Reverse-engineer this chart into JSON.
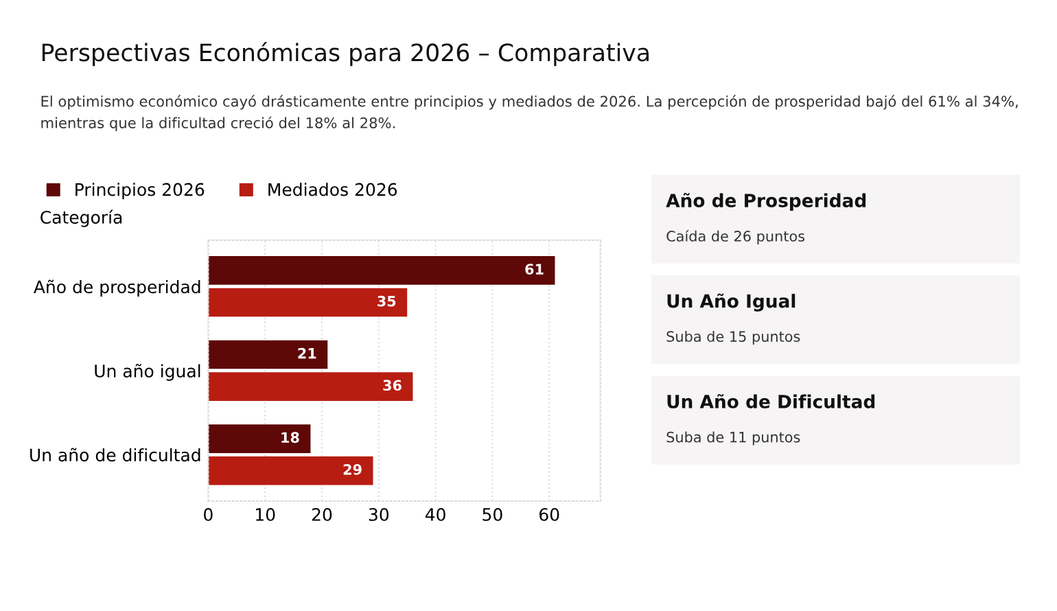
{
  "chart_data": [
    {
      "type": "bar",
      "orientation": "horizontal",
      "title": "Perspectivas Económicas para 2026 – Comparativa",
      "subtitle": "El optimismo económico cayó drásticamente entre principios y mediados de 2026. La percepción de prosperidad bajó del 61% al 34%, mientras que la dificultad creció del 18% al 28%.",
      "ylabel": "Categoría",
      "categories": [
        "Año de prosperidad",
        "Un año igual",
        "Un año de dificultad"
      ],
      "series": [
        {
          "name": "Principios 2026",
          "color": "#5e0808",
          "values": [
            61,
            21,
            18
          ]
        },
        {
          "name": "Mediados 2026",
          "color": "#b81d12",
          "values": [
            35,
            36,
            29
          ]
        }
      ],
      "xlim": [
        0,
        69
      ],
      "xticks": [
        0,
        10,
        20,
        30,
        40,
        50,
        60
      ],
      "grid": "x",
      "legend": "top left",
      "data_labels": true
    },
    {
      "type": "other",
      "annotations": [
        "Año de Prosperidad",
        "Caída de 26 puntos",
        "Un Año Igual",
        "Suba de 15 puntos",
        "Un Año de Dificultad",
        "Suba de 11 puntos"
      ]
    }
  ]
}
